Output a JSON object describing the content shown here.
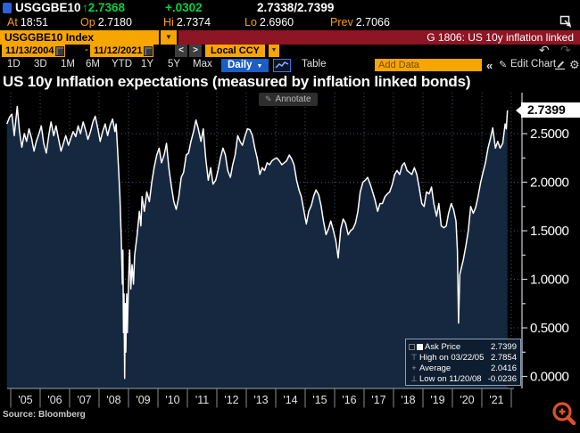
{
  "quote": {
    "ticker": "USGGBE10",
    "arrow": "↑",
    "last": "2.7368",
    "change": "+.0302",
    "bid_ask": "2.7338/2.7399",
    "at_label": "At",
    "at_value": "18:51",
    "op_label": "Op",
    "op_value": "2.7180",
    "hi_label": "Hi",
    "hi_value": "2.7374",
    "lo_label": "Lo",
    "lo_value": "2.6960",
    "prev_label": "Prev",
    "prev_value": "2.7066"
  },
  "security_bar": {
    "name": "USGGBE10 Index",
    "banner": "G 1806: US 10y inflation linked"
  },
  "controls": {
    "date_from": "11/13/2004",
    "date_sep": "-",
    "date_to": "11/12/2021",
    "prev_label": "<",
    "next_label": ">",
    "currency": "Local CCY",
    "periods": [
      "1D",
      "3D",
      "1M",
      "6M",
      "YTD",
      "1Y",
      "5Y",
      "Max"
    ],
    "frequency": "Daily",
    "table_label": "Table",
    "add_data_placeholder": "Add Data",
    "collapse_label": "«",
    "edit_chart_label": "Edit Chart"
  },
  "chart": {
    "title": "US 10y Inflation expectations (measured by inflation linked bonds)",
    "annotate_label": "Annotate",
    "last_price_tag": "2.7399",
    "source": "Source: Bloomberg"
  },
  "legend": {
    "rows": [
      {
        "label": "Ask Price",
        "value": "2.7399"
      },
      {
        "label": "High on 03/22/05",
        "value": "2.7854"
      },
      {
        "label": "Average",
        "value": "2.0416"
      },
      {
        "label": "Low on 11/20/08",
        "value": "-0.0236"
      }
    ]
  },
  "colors": {
    "accent_orange": "#f7a500",
    "banner_red": "#8e1523",
    "price_green": "#00d23c",
    "label_amber": "#ff9d00",
    "freq_blue": "#1b5ec6",
    "chart_fill": "#16283f",
    "chart_line": "#ffffff",
    "grid": "#3d5472",
    "axis": "#c7ccd4",
    "axis_strip": "#9aa2ac",
    "magnifier": "#e0502c"
  },
  "chart_data": {
    "type": "area",
    "title": "US 10y Inflation expectations (measured by inflation linked bonds)",
    "xlabel": "",
    "ylabel": "",
    "x_start": 2004.87,
    "x_end": 2021.87,
    "ylim": [
      -0.12,
      3.0
    ],
    "grid": true,
    "legend_position": "bottom-right",
    "y_ticks": [
      0.0,
      0.5,
      1.0,
      1.5,
      2.0,
      2.5
    ],
    "y_tick_labels": [
      "0.0000",
      "0.5000",
      "1.0000",
      "1.5000",
      "2.0000",
      "2.5000"
    ],
    "x_tick_labels": [
      "'05",
      "'06",
      "'07",
      "'08",
      "'09",
      "'10",
      "'11",
      "'12",
      "'13",
      "'14",
      "'15",
      "'16",
      "'17",
      "'18",
      "'19",
      "'20",
      "'21"
    ],
    "stats": {
      "last": 2.7399,
      "high": 2.7854,
      "high_date": "03/22/05",
      "average": 2.0416,
      "low": -0.0236,
      "low_date": "11/20/08"
    },
    "series": [
      {
        "name": "Ask Price",
        "points": [
          [
            2004.87,
            2.6
          ],
          [
            2004.96,
            2.67
          ],
          [
            2005.04,
            2.7
          ],
          [
            2005.12,
            2.48
          ],
          [
            2005.22,
            2.78
          ],
          [
            2005.3,
            2.52
          ],
          [
            2005.38,
            2.36
          ],
          [
            2005.46,
            2.5
          ],
          [
            2005.54,
            2.42
          ],
          [
            2005.62,
            2.55
          ],
          [
            2005.71,
            2.45
          ],
          [
            2005.79,
            2.32
          ],
          [
            2005.87,
            2.42
          ],
          [
            2005.96,
            2.5
          ],
          [
            2006.04,
            2.58
          ],
          [
            2006.12,
            2.4
          ],
          [
            2006.21,
            2.3
          ],
          [
            2006.29,
            2.48
          ],
          [
            2006.37,
            2.62
          ],
          [
            2006.46,
            2.48
          ],
          [
            2006.54,
            2.58
          ],
          [
            2006.62,
            2.45
          ],
          [
            2006.71,
            2.32
          ],
          [
            2006.79,
            2.4
          ],
          [
            2006.87,
            2.48
          ],
          [
            2006.96,
            2.38
          ],
          [
            2007.04,
            2.45
          ],
          [
            2007.12,
            2.52
          ],
          [
            2007.21,
            2.47
          ],
          [
            2007.29,
            2.58
          ],
          [
            2007.37,
            2.5
          ],
          [
            2007.46,
            2.62
          ],
          [
            2007.54,
            2.54
          ],
          [
            2007.62,
            2.44
          ],
          [
            2007.71,
            2.52
          ],
          [
            2007.79,
            2.62
          ],
          [
            2007.87,
            2.68
          ],
          [
            2007.96,
            2.55
          ],
          [
            2008.04,
            2.42
          ],
          [
            2008.12,
            2.52
          ],
          [
            2008.21,
            2.6
          ],
          [
            2008.29,
            2.48
          ],
          [
            2008.37,
            2.58
          ],
          [
            2008.46,
            2.65
          ],
          [
            2008.54,
            2.52
          ],
          [
            2008.58,
            2.6
          ],
          [
            2008.62,
            2.38
          ],
          [
            2008.67,
            2.1
          ],
          [
            2008.71,
            1.85
          ],
          [
            2008.75,
            1.45
          ],
          [
            2008.79,
            0.95
          ],
          [
            2008.81,
            1.3
          ],
          [
            2008.83,
            0.45
          ],
          [
            2008.85,
            0.85
          ],
          [
            2008.87,
            -0.02
          ],
          [
            2008.89,
            0.75
          ],
          [
            2008.91,
            0.25
          ],
          [
            2008.94,
            0.85
          ],
          [
            2008.96,
            0.45
          ],
          [
            2009.0,
            0.95
          ],
          [
            2009.04,
            1.3
          ],
          [
            2009.08,
            0.9
          ],
          [
            2009.12,
            1.15
          ],
          [
            2009.17,
            0.95
          ],
          [
            2009.21,
            1.25
          ],
          [
            2009.29,
            1.45
          ],
          [
            2009.37,
            1.7
          ],
          [
            2009.42,
            1.55
          ],
          [
            2009.46,
            1.85
          ],
          [
            2009.54,
            1.7
          ],
          [
            2009.62,
            1.9
          ],
          [
            2009.71,
            1.8
          ],
          [
            2009.79,
            2.0
          ],
          [
            2009.87,
            2.15
          ],
          [
            2009.96,
            2.28
          ],
          [
            2010.04,
            2.35
          ],
          [
            2010.12,
            2.2
          ],
          [
            2010.21,
            2.28
          ],
          [
            2010.29,
            2.4
          ],
          [
            2010.37,
            2.15
          ],
          [
            2010.46,
            1.95
          ],
          [
            2010.54,
            1.8
          ],
          [
            2010.62,
            1.72
          ],
          [
            2010.71,
            1.85
          ],
          [
            2010.79,
            2.05
          ],
          [
            2010.87,
            2.1
          ],
          [
            2010.96,
            2.28
          ],
          [
            2011.04,
            2.3
          ],
          [
            2011.12,
            2.42
          ],
          [
            2011.21,
            2.52
          ],
          [
            2011.29,
            2.64
          ],
          [
            2011.37,
            2.55
          ],
          [
            2011.46,
            2.42
          ],
          [
            2011.54,
            2.55
          ],
          [
            2011.62,
            2.25
          ],
          [
            2011.71,
            2.02
          ],
          [
            2011.79,
            2.15
          ],
          [
            2011.87,
            1.98
          ],
          [
            2011.96,
            2.02
          ],
          [
            2012.04,
            2.12
          ],
          [
            2012.12,
            2.25
          ],
          [
            2012.21,
            2.35
          ],
          [
            2012.29,
            2.28
          ],
          [
            2012.37,
            2.12
          ],
          [
            2012.46,
            2.05
          ],
          [
            2012.54,
            2.18
          ],
          [
            2012.62,
            2.28
          ],
          [
            2012.71,
            2.48
          ],
          [
            2012.79,
            2.42
          ],
          [
            2012.87,
            2.38
          ],
          [
            2012.96,
            2.48
          ],
          [
            2013.04,
            2.55
          ],
          [
            2013.12,
            2.54
          ],
          [
            2013.21,
            2.48
          ],
          [
            2013.29,
            2.35
          ],
          [
            2013.37,
            2.25
          ],
          [
            2013.46,
            2.08
          ],
          [
            2013.54,
            2.15
          ],
          [
            2013.62,
            2.12
          ],
          [
            2013.71,
            2.2
          ],
          [
            2013.79,
            2.18
          ],
          [
            2013.87,
            2.22
          ],
          [
            2013.96,
            2.24
          ],
          [
            2014.04,
            2.25
          ],
          [
            2014.12,
            2.22
          ],
          [
            2014.21,
            2.18
          ],
          [
            2014.29,
            2.2
          ],
          [
            2014.37,
            2.22
          ],
          [
            2014.46,
            2.28
          ],
          [
            2014.54,
            2.24
          ],
          [
            2014.62,
            2.18
          ],
          [
            2014.71,
            2.02
          ],
          [
            2014.79,
            1.92
          ],
          [
            2014.87,
            1.85
          ],
          [
            2014.96,
            1.7
          ],
          [
            2015.04,
            1.57
          ],
          [
            2015.12,
            1.7
          ],
          [
            2015.21,
            1.76
          ],
          [
            2015.29,
            1.86
          ],
          [
            2015.37,
            1.92
          ],
          [
            2015.46,
            1.87
          ],
          [
            2015.54,
            1.76
          ],
          [
            2015.62,
            1.6
          ],
          [
            2015.71,
            1.46
          ],
          [
            2015.79,
            1.52
          ],
          [
            2015.87,
            1.6
          ],
          [
            2015.96,
            1.5
          ],
          [
            2016.04,
            1.4
          ],
          [
            2016.12,
            1.22
          ],
          [
            2016.21,
            1.52
          ],
          [
            2016.29,
            1.62
          ],
          [
            2016.37,
            1.58
          ],
          [
            2016.46,
            1.46
          ],
          [
            2016.54,
            1.5
          ],
          [
            2016.62,
            1.52
          ],
          [
            2016.71,
            1.58
          ],
          [
            2016.79,
            1.7
          ],
          [
            2016.87,
            1.9
          ],
          [
            2016.96,
            2.0
          ],
          [
            2017.04,
            2.02
          ],
          [
            2017.12,
            2.05
          ],
          [
            2017.21,
            1.98
          ],
          [
            2017.29,
            1.9
          ],
          [
            2017.37,
            1.82
          ],
          [
            2017.46,
            1.7
          ],
          [
            2017.54,
            1.78
          ],
          [
            2017.62,
            1.78
          ],
          [
            2017.71,
            1.85
          ],
          [
            2017.79,
            1.88
          ],
          [
            2017.87,
            1.9
          ],
          [
            2017.96,
            1.98
          ],
          [
            2018.04,
            2.08
          ],
          [
            2018.12,
            2.12
          ],
          [
            2018.21,
            2.08
          ],
          [
            2018.29,
            2.17
          ],
          [
            2018.37,
            2.2
          ],
          [
            2018.46,
            2.12
          ],
          [
            2018.54,
            2.1
          ],
          [
            2018.62,
            2.08
          ],
          [
            2018.71,
            2.15
          ],
          [
            2018.79,
            2.08
          ],
          [
            2018.87,
            1.95
          ],
          [
            2018.96,
            1.78
          ],
          [
            2019.04,
            1.75
          ],
          [
            2019.12,
            1.9
          ],
          [
            2019.21,
            1.88
          ],
          [
            2019.29,
            1.95
          ],
          [
            2019.37,
            1.78
          ],
          [
            2019.46,
            1.65
          ],
          [
            2019.54,
            1.78
          ],
          [
            2019.62,
            1.55
          ],
          [
            2019.71,
            1.53
          ],
          [
            2019.79,
            1.55
          ],
          [
            2019.87,
            1.68
          ],
          [
            2019.96,
            1.78
          ],
          [
            2020.04,
            1.72
          ],
          [
            2020.12,
            1.6
          ],
          [
            2020.17,
            1.3
          ],
          [
            2020.21,
            0.55
          ],
          [
            2020.25,
            1.05
          ],
          [
            2020.29,
            1.1
          ],
          [
            2020.37,
            1.2
          ],
          [
            2020.46,
            1.35
          ],
          [
            2020.54,
            1.5
          ],
          [
            2020.62,
            1.75
          ],
          [
            2020.71,
            1.68
          ],
          [
            2020.79,
            1.74
          ],
          [
            2020.87,
            1.85
          ],
          [
            2020.96,
            2.0
          ],
          [
            2021.04,
            2.1
          ],
          [
            2021.12,
            2.2
          ],
          [
            2021.21,
            2.35
          ],
          [
            2021.29,
            2.45
          ],
          [
            2021.37,
            2.56
          ],
          [
            2021.46,
            2.35
          ],
          [
            2021.54,
            2.42
          ],
          [
            2021.62,
            2.35
          ],
          [
            2021.71,
            2.4
          ],
          [
            2021.79,
            2.6
          ],
          [
            2021.83,
            2.55
          ],
          [
            2021.87,
            2.74
          ]
        ]
      }
    ]
  }
}
